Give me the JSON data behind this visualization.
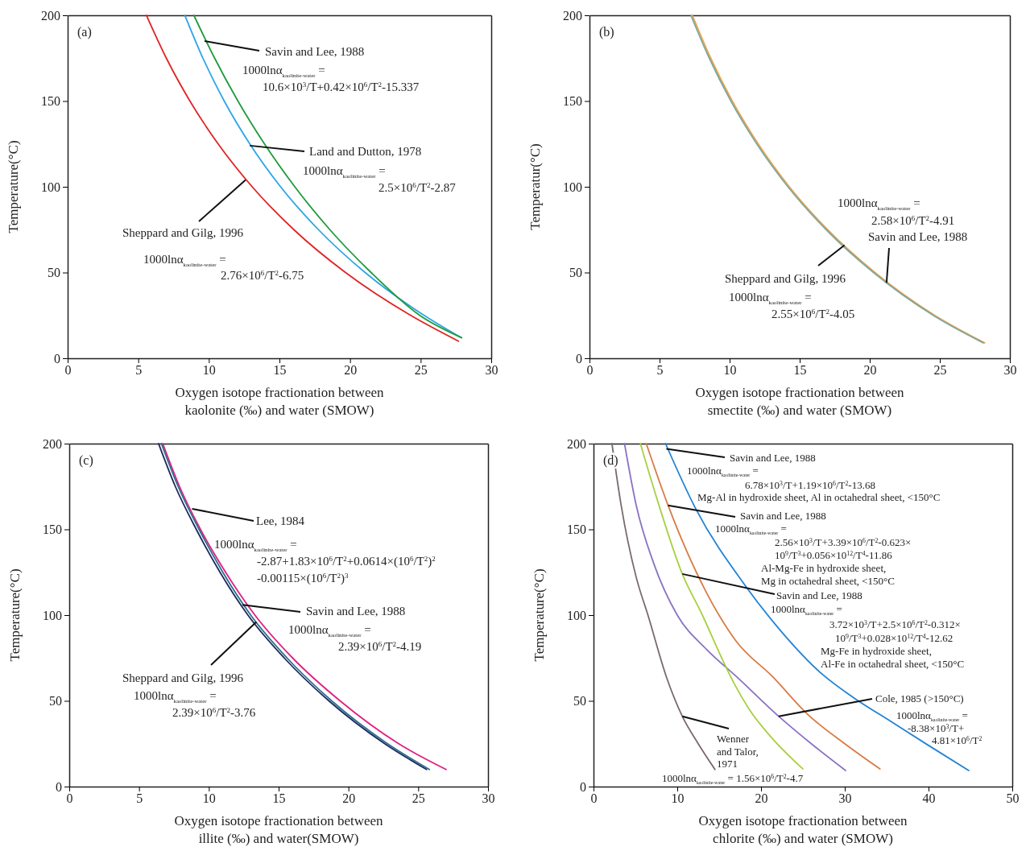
{
  "chart_data": [
    {
      "type": "line",
      "title": "(a)",
      "xlabel": "Oxygen isotope fractionation between\nkaolonite (‰)  and water (SMOW)",
      "ylabel": "Temperature(°C)",
      "xlim": [
        0,
        30
      ],
      "ylim": [
        0,
        200
      ],
      "xticks": [
        0,
        5,
        10,
        15,
        20,
        25,
        30
      ],
      "yticks": [
        0,
        50,
        100,
        150,
        200
      ],
      "series": [
        {
          "color": "#e02424",
          "x": [
            5.58,
            6.99,
            8.66,
            10.66,
            13.07,
            16.02,
            19.68,
            24.3,
            27.68
          ],
          "values": [
            200,
            175,
            150,
            125,
            100,
            75,
            50,
            25,
            10
          ]
        },
        {
          "color": "#2aa6e6",
          "x": [
            8.3,
            9.58,
            11.09,
            12.9,
            15.08,
            17.76,
            21.07,
            25.25,
            27.88
          ],
          "values": [
            200,
            175,
            150,
            125,
            100,
            75,
            50,
            25,
            12
          ]
        },
        {
          "color": "#1f9a3c",
          "x": [
            8.94,
            10.41,
            12.06,
            13.94,
            16.09,
            18.57,
            21.49,
            24.94,
            27.9
          ],
          "values": [
            200,
            175,
            150,
            125,
            100,
            75,
            50,
            25,
            12
          ]
        }
      ],
      "annotations": [
        {
          "text": "Savin and Lee, 1988",
          "x": 9.7,
          "y": 185
        },
        "1000lnα$_{kaolinite-water}$ =",
        "10.6×10$^{3}$/T+0.42×10$^{6}$/T$^{2}$-15.337",
        {
          "text": "Land and Dutton, 1978",
          "x": 12.9,
          "y": 124
        },
        "1000lnα$_{kaolinite-water}$ =",
        "2.5×10$^{6}$/T$^{2}$-2.87",
        {
          "text": "Sheppard and Gilg, 1996",
          "x": 12.6,
          "y": 104
        },
        "1000lnα$_{kaolinite-water}$ =",
        "2.76×10$^{6}$/T$^{2}$-6.75"
      ]
    },
    {
      "type": "line",
      "title": "(b)",
      "xlabel": "Oxygen isotope fractionation between\nsmectite (‰)  and water (SMOW)",
      "ylabel": "Temperatur(°C)",
      "xlim": [
        0,
        30
      ],
      "ylim": [
        0,
        200
      ],
      "xticks": [
        0,
        5,
        10,
        15,
        20,
        25,
        30
      ],
      "yticks": [
        0,
        50,
        100,
        150,
        200
      ],
      "series": [
        {
          "color": "#f0a048",
          "x": [
            7.34,
            8.65,
            10.19,
            12.04,
            14.26,
            16.99,
            20.37,
            24.64,
            28.2
          ],
          "values": [
            200,
            175,
            150,
            125,
            100,
            75,
            50,
            25,
            9
          ]
        },
        {
          "color": "#7fa89c",
          "x": [
            7.24,
            8.55,
            10.09,
            11.94,
            14.16,
            16.89,
            20.27,
            24.54,
            28.1
          ],
          "values": [
            200,
            175,
            150,
            125,
            100,
            75,
            50,
            25,
            9
          ]
        }
      ],
      "annotations": [
        "1000lnα$_{kaolinite-water}$ =",
        "2.58×10$^{6}$/T$^{2}$-4.91",
        {
          "text": "Savin and Lee, 1988",
          "x": 21.2,
          "y": 44
        },
        {
          "text": "Sheppard and Gilg, 1996",
          "x": 18.2,
          "y": 66
        },
        "1000lnα$_{kaolinite-water}$ =",
        "2.55×10$^{6}$/T$^{2}$-4.05"
      ]
    },
    {
      "type": "line",
      "title": "(c)",
      "xlabel": "Oxygen isotope fractionation between\nillite (‰) and water(SMOW)",
      "ylabel": "Temperature(°C)",
      "xlim": [
        0,
        30
      ],
      "ylim": [
        0,
        200
      ],
      "xticks": [
        0,
        5,
        10,
        15,
        20,
        25,
        30
      ],
      "yticks": [
        0,
        50,
        100,
        150,
        200
      ],
      "series": [
        {
          "color": "#e0207f",
          "x": [
            6.7,
            7.9,
            9.4,
            11.2,
            13.3,
            16.0,
            19.4,
            23.6,
            27.0
          ],
          "values": [
            200,
            175,
            150,
            125,
            100,
            75,
            50,
            25,
            10
          ]
        },
        {
          "color": "#1c2a5c",
          "x": [
            6.4,
            7.6,
            9.1,
            10.8,
            12.8,
            15.4,
            18.6,
            22.6,
            25.6
          ],
          "values": [
            200,
            175,
            150,
            125,
            100,
            75,
            50,
            25,
            10
          ]
        },
        {
          "color": "#2a6e8e",
          "x": [
            6.6,
            7.8,
            9.3,
            11.0,
            13.0,
            15.6,
            18.8,
            22.8,
            25.8
          ],
          "values": [
            200,
            175,
            150,
            125,
            100,
            75,
            50,
            25,
            10
          ]
        }
      ],
      "annotations": [
        {
          "text": "Lee, 1984",
          "x": 8.8,
          "y": 162
        },
        "1000lnα$_{kaolinite-water}$ =",
        "-2.87+1.83×10$^{6}$/T$^{2}$+0.0614×(10$^{6}$/T$^{2}$)$^{2}$",
        "-0.00115×(10$^{6}$/T$^{2}$)$^{3}$",
        {
          "text": "Savin and Lee, 1988",
          "x": 12.4,
          "y": 106
        },
        "1000lnα$_{kaolinite-water}$ =",
        "2.39×10$^{6}$/T$^{2}$-4.19",
        {
          "text": "Sheppard and Gilg, 1996",
          "x": 13.4,
          "y": 96
        },
        "1000lnα$_{kaolinite-water}$ =",
        "2.39×10$^{6}$/T$^{2}$-3.76"
      ]
    },
    {
      "type": "line",
      "title": "(d)",
      "xlabel": "Oxygen isotope fractionation between\nchlorite (‰) and water (SMOW)",
      "ylabel": "Temperature(°C)",
      "xlim": [
        0,
        50
      ],
      "ylim": [
        0,
        200
      ],
      "xticks": [
        0,
        10,
        20,
        30,
        40,
        50
      ],
      "yticks": [
        0,
        50,
        100,
        150,
        200
      ],
      "series": [
        {
          "color": "#7a6a6a",
          "x": [
            2.2,
            3.3,
            5.1,
            6.5,
            8.7,
            10.6,
            12.5,
            14.5
          ],
          "values": [
            200,
            164,
            122,
            100,
            64,
            41,
            25,
            10
          ]
        },
        {
          "color": "#8a72c4",
          "x": [
            3.7,
            5.1,
            7.2,
            10.0,
            13.5,
            17.1,
            22.1,
            26.0,
            30.1
          ],
          "values": [
            200,
            164,
            130,
            100,
            80,
            64,
            41,
            25,
            9.4
          ]
        },
        {
          "color": "#a8d040",
          "x": [
            5.6,
            7.5,
            10.6,
            13.0,
            15.3,
            16.8,
            18.6,
            21.0,
            25.0
          ],
          "values": [
            200,
            169,
            124,
            100,
            75,
            60,
            45,
            30,
            10.3
          ]
        },
        {
          "color": "#d87c44",
          "x": [
            6.3,
            8.9,
            13.5,
            17.0,
            21.4,
            25.6,
            30.0,
            34.2
          ],
          "values": [
            200,
            164,
            113,
            85,
            64,
            42,
            25,
            10.3
          ]
        },
        {
          "color": "#2283d4",
          "x": [
            8.6,
            12.1,
            18.3,
            22.5,
            27.2,
            31.0,
            35.5,
            40.0,
            44.8
          ],
          "values": [
            200,
            163,
            116,
            90,
            66,
            52,
            38,
            24,
            9.4
          ]
        }
      ],
      "annotations": [
        {
          "text": "Savin and Lee, 1988",
          "x": 8.7,
          "y": 197
        },
        "1000lnα$_{kaolinite-water}$ =",
        "6.78×10$^{3}$/T+1.19×10$^{6}$/T$^{2}$-13.68",
        "Mg-Al in hydroxide sheet, Al in octahedral sheet, <150°C",
        {
          "text": "Savin and Lee, 1988",
          "x": 8.9,
          "y": 164
        },
        "1000lnα$_{kaolinite-water}$ =",
        "2.56×10$^{3}$/T+3.39×10$^{6}$/T$^{2}$-0.623×",
        "10$^{9}$/T$^{3}$+0.056×10$^{12}$/T$^{4}$-11.86",
        "Al-Mg-Fe in hydroxide sheet,",
        "Mg in octahedral sheet, <150°C",
        {
          "text": "Savin and Lee, 1988",
          "x": 10.6,
          "y": 124
        },
        "1000lnα$_{kaolinite-water}$ =",
        "3.72×10$^{3}$/T+2.5×10$^{6}$/T$^{2}$-0.312×",
        "10$^{9}$/T$^{3}$+0.028×10$^{12}$/T$^{4}$-12.62",
        "Mg-Fe in hydroxide sheet,",
        "Al-Fe in octahedral sheet, <150°C",
        {
          "text": "Cole, 1985 (>150°C)",
          "x": 22.1,
          "y": 41
        },
        "1000lnα$_{kaolinite-water}$ =",
        "-8.38×10$^{3}$/T+",
        "4.81×10$^{6}$/T$^{2}$",
        {
          "text": "Wenner",
          "x": 10.6,
          "y": 41
        },
        "and Talor,",
        "1971",
        "1000lnα$_{kaolinite-water}$ = 1.56×10$^{6}$/T$^{2}$-4.7"
      ]
    }
  ]
}
